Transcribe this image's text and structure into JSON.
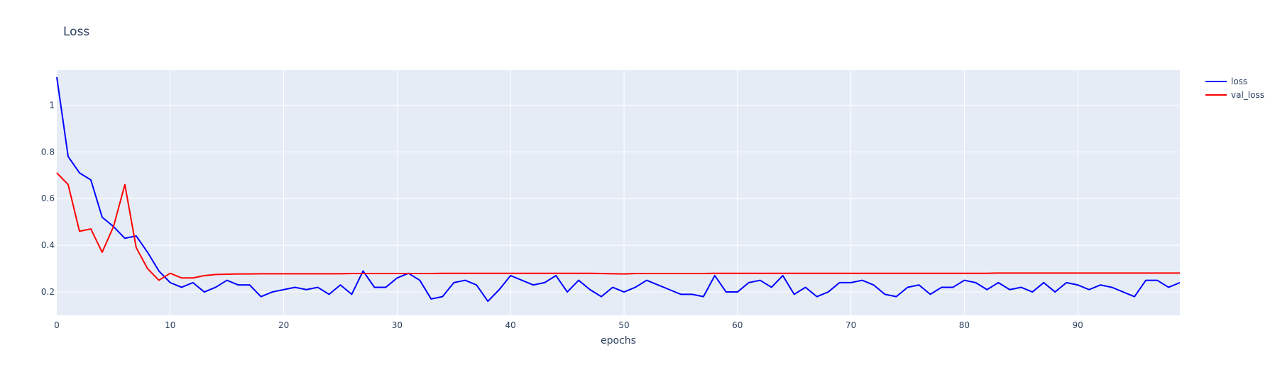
{
  "chart_data": {
    "type": "line",
    "title": "Loss",
    "xlabel": "epochs",
    "ylabel": "",
    "xlim": [
      0,
      99
    ],
    "ylim": [
      0.1,
      1.15
    ],
    "x_ticks": [
      0,
      10,
      20,
      30,
      40,
      50,
      60,
      70,
      80,
      90
    ],
    "y_ticks": [
      0.2,
      0.4,
      0.6,
      0.8,
      1
    ],
    "grid": true,
    "legend_position": "top-right",
    "plot_background": "#e5ecf6",
    "grid_color": "#ffffff",
    "series": [
      {
        "name": "loss",
        "color": "#0000ff",
        "values": [
          1.12,
          0.78,
          0.71,
          0.68,
          0.52,
          0.48,
          0.43,
          0.44,
          0.37,
          0.29,
          0.24,
          0.22,
          0.24,
          0.2,
          0.22,
          0.25,
          0.23,
          0.23,
          0.18,
          0.2,
          0.21,
          0.22,
          0.21,
          0.22,
          0.19,
          0.23,
          0.19,
          0.29,
          0.22,
          0.22,
          0.26,
          0.28,
          0.25,
          0.17,
          0.18,
          0.24,
          0.25,
          0.23,
          0.16,
          0.21,
          0.27,
          0.25,
          0.23,
          0.24,
          0.27,
          0.2,
          0.25,
          0.21,
          0.18,
          0.22,
          0.2,
          0.22,
          0.25,
          0.23,
          0.21,
          0.19,
          0.19,
          0.18,
          0.27,
          0.2,
          0.2,
          0.24,
          0.25,
          0.22,
          0.27,
          0.19,
          0.22,
          0.18,
          0.2,
          0.24,
          0.24,
          0.25,
          0.23,
          0.19,
          0.18,
          0.22,
          0.23,
          0.19,
          0.22,
          0.22,
          0.25,
          0.24,
          0.21,
          0.24,
          0.21,
          0.22,
          0.2,
          0.24,
          0.2,
          0.24,
          0.23,
          0.21,
          0.23,
          0.22,
          0.2,
          0.18,
          0.25,
          0.25,
          0.22,
          0.24
        ]
      },
      {
        "name": "val_loss",
        "color": "#ff0000",
        "values": [
          0.71,
          0.66,
          0.46,
          0.47,
          0.37,
          0.48,
          0.66,
          0.39,
          0.3,
          0.25,
          0.28,
          0.26,
          0.26,
          0.27,
          0.275,
          0.276,
          0.277,
          0.277,
          0.278,
          0.278,
          0.278,
          0.278,
          0.278,
          0.278,
          0.278,
          0.278,
          0.279,
          0.279,
          0.279,
          0.279,
          0.279,
          0.279,
          0.279,
          0.279,
          0.28,
          0.28,
          0.28,
          0.28,
          0.28,
          0.28,
          0.28,
          0.28,
          0.28,
          0.28,
          0.28,
          0.28,
          0.28,
          0.28,
          0.279,
          0.278,
          0.277,
          0.279,
          0.279,
          0.279,
          0.279,
          0.279,
          0.279,
          0.279,
          0.28,
          0.28,
          0.28,
          0.28,
          0.28,
          0.28,
          0.28,
          0.28,
          0.28,
          0.28,
          0.28,
          0.28,
          0.28,
          0.28,
          0.28,
          0.28,
          0.28,
          0.28,
          0.28,
          0.28,
          0.28,
          0.28,
          0.28,
          0.28,
          0.28,
          0.281,
          0.281,
          0.281,
          0.281,
          0.281,
          0.281,
          0.281,
          0.281,
          0.281,
          0.281,
          0.281,
          0.281,
          0.281,
          0.281,
          0.281,
          0.281,
          0.281
        ]
      }
    ]
  }
}
